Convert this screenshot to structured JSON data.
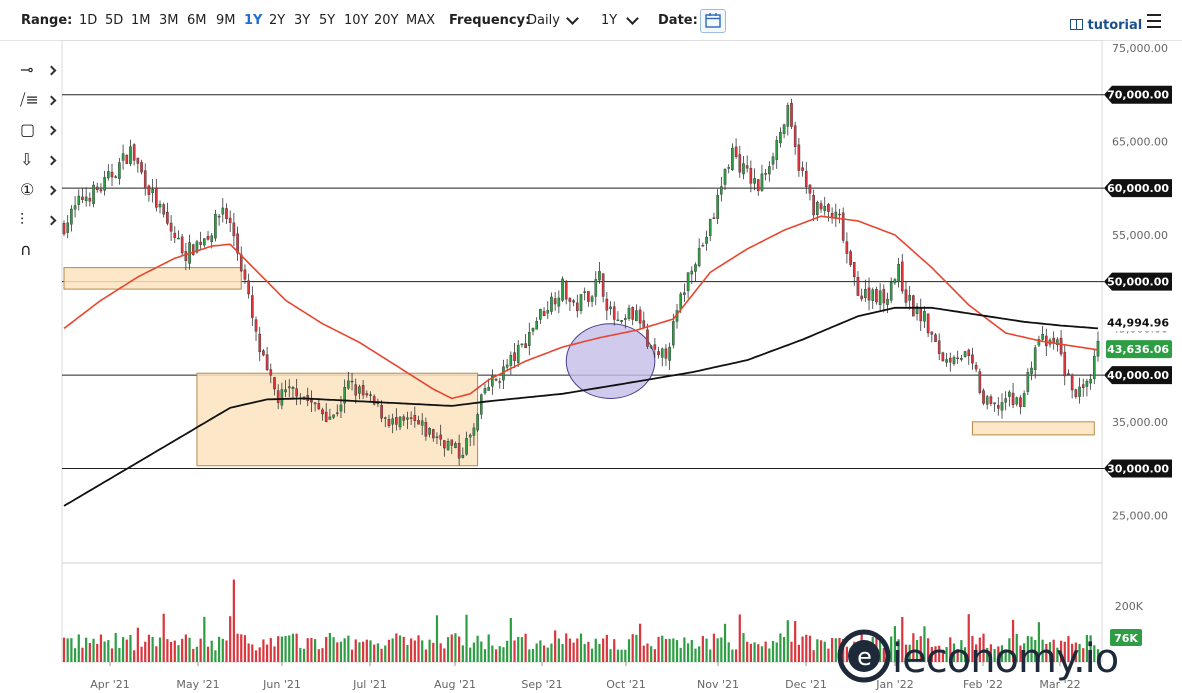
{
  "toolbar": {
    "range_label": "Range:",
    "ranges": [
      "1D",
      "5D",
      "1M",
      "3M",
      "6M",
      "9M",
      "1Y",
      "2Y",
      "3Y",
      "5Y",
      "10Y",
      "20Y",
      "MAX"
    ],
    "active_range": "1Y",
    "frequency_label": "Frequency:",
    "frequency_value": "Daily",
    "period_value": "1Y",
    "date_label": "Date:",
    "calendar_icon": "calendar-icon",
    "tutorial_label": "tutorial",
    "menu_icon": "hamburger-menu-icon"
  },
  "left_tools": [
    "crosshair-line-icon",
    "trend-tools-icon",
    "rectangle-tool-icon",
    "arrow-down-icon",
    "numbered-marker-icon",
    "fibonacci-tool-icon",
    "magnet-icon"
  ],
  "watermark": "ieconomy.io",
  "colors": {
    "up": "#2e9e44",
    "down": "#d9363e",
    "ma50": "#e8452e",
    "ma200": "#111111",
    "zone_fill": "#fbe4c0",
    "zone_stroke": "#b8894a",
    "circle_fill": "#c4bde9"
  },
  "chart_data": {
    "type": "candlestick",
    "y_axis": {
      "min": 20000,
      "max": 75000,
      "ticks": [
        "75,000.00",
        "65,000.00",
        "55,000.00",
        "45,000.00",
        "35,000.00",
        "25,000.00"
      ]
    },
    "x_axis": {
      "ticks": [
        "Apr '21",
        "May '21",
        "Jun '21",
        "Jul '21",
        "Aug '21",
        "Sep '21",
        "Oct '21",
        "Nov '21",
        "Dec '21",
        "Jan '22",
        "Feb '22",
        "Mar '22"
      ]
    },
    "horizontal_lines": [
      {
        "value": 70000,
        "label": "70,000.00"
      },
      {
        "value": 60000,
        "label": "60,000.00"
      },
      {
        "value": 50000,
        "label": "50,000.00"
      },
      {
        "value": 40000,
        "label": "40,000.00"
      },
      {
        "value": 30000,
        "label": "30,000.00"
      }
    ],
    "price_labels": [
      {
        "value": 44994.96,
        "label": "44,994.96",
        "series": "ma200"
      },
      {
        "value": 43636.06,
        "label": "43,636.06",
        "series": "last_price"
      }
    ],
    "volume": {
      "axis_label": "200K",
      "last_label": "76K"
    },
    "close_path": [
      [
        0,
        56000
      ],
      [
        5,
        59000
      ],
      [
        10,
        60000
      ],
      [
        15,
        62500
      ],
      [
        18,
        64000
      ],
      [
        23,
        60000
      ],
      [
        28,
        56000
      ],
      [
        33,
        53000
      ],
      [
        40,
        55500
      ],
      [
        43,
        58000
      ],
      [
        46,
        55000
      ],
      [
        49,
        50000
      ],
      [
        52,
        44000
      ],
      [
        55,
        40000
      ],
      [
        58,
        37500
      ],
      [
        63,
        38500
      ],
      [
        68,
        36500
      ],
      [
        73,
        35500
      ],
      [
        77,
        39000
      ],
      [
        82,
        37500
      ],
      [
        86,
        36000
      ],
      [
        90,
        34500
      ],
      [
        94,
        35000
      ],
      [
        98,
        34000
      ],
      [
        103,
        33000
      ],
      [
        107,
        31500
      ],
      [
        111,
        34000
      ],
      [
        114,
        38500
      ],
      [
        117,
        39500
      ],
      [
        120,
        41000
      ],
      [
        124,
        43000
      ],
      [
        128,
        46000
      ],
      [
        132,
        48000
      ],
      [
        135,
        49500
      ],
      [
        138,
        47000
      ],
      [
        141,
        48500
      ],
      [
        143,
        49000
      ],
      [
        145,
        50500
      ],
      [
        148,
        46500
      ],
      [
        151,
        45000
      ],
      [
        153,
        46500
      ],
      [
        156,
        46000
      ],
      [
        158,
        43000
      ],
      [
        161,
        41500
      ],
      [
        163,
        42500
      ],
      [
        165,
        45000
      ],
      [
        167,
        48000
      ],
      [
        170,
        52000
      ],
      [
        173,
        54000
      ],
      [
        176,
        57000
      ],
      [
        178,
        60500
      ],
      [
        181,
        64000
      ],
      [
        183,
        62500
      ],
      [
        186,
        61000
      ],
      [
        188,
        60000
      ],
      [
        191,
        63000
      ],
      [
        194,
        66000
      ],
      [
        196,
        68000
      ],
      [
        198,
        64000
      ],
      [
        201,
        60000
      ],
      [
        203,
        58000
      ],
      [
        206,
        57500
      ],
      [
        208,
        57000
      ],
      [
        210,
        56500
      ],
      [
        213,
        51000
      ],
      [
        216,
        48500
      ],
      [
        219,
        49000
      ],
      [
        222,
        48000
      ],
      [
        224,
        50000
      ],
      [
        226,
        51000
      ],
      [
        228,
        48500
      ],
      [
        230,
        47000
      ],
      [
        233,
        46000
      ],
      [
        236,
        43000
      ],
      [
        239,
        41500
      ],
      [
        241,
        42500
      ],
      [
        244,
        42000
      ],
      [
        247,
        40000
      ],
      [
        249,
        37000
      ],
      [
        252,
        36500
      ],
      [
        255,
        37500
      ],
      [
        258,
        37000
      ],
      [
        260,
        38000
      ],
      [
        262,
        41500
      ],
      [
        264,
        44000
      ],
      [
        267,
        43000
      ],
      [
        269,
        43500
      ],
      [
        271,
        40500
      ],
      [
        273,
        38500
      ],
      [
        276,
        38000
      ],
      [
        278,
        39000
      ],
      [
        280,
        43636
      ]
    ],
    "ma50_path": [
      [
        0,
        45000
      ],
      [
        10,
        48000
      ],
      [
        20,
        50500
      ],
      [
        30,
        52500
      ],
      [
        40,
        53800
      ],
      [
        45,
        54000
      ],
      [
        50,
        52000
      ],
      [
        60,
        48000
      ],
      [
        70,
        45500
      ],
      [
        80,
        43500
      ],
      [
        90,
        41000
      ],
      [
        100,
        38500
      ],
      [
        105,
        37500
      ],
      [
        110,
        38000
      ],
      [
        115,
        39500
      ],
      [
        125,
        41500
      ],
      [
        135,
        43000
      ],
      [
        145,
        44000
      ],
      [
        155,
        44800
      ],
      [
        165,
        46000
      ],
      [
        175,
        51000
      ],
      [
        185,
        53500
      ],
      [
        195,
        55500
      ],
      [
        205,
        57000
      ],
      [
        215,
        56500
      ],
      [
        225,
        55000
      ],
      [
        235,
        51500
      ],
      [
        245,
        47500
      ],
      [
        255,
        44500
      ],
      [
        265,
        43600
      ],
      [
        275,
        43000
      ],
      [
        280,
        42700
      ]
    ],
    "ma200_path": [
      [
        0,
        26000
      ],
      [
        15,
        29500
      ],
      [
        30,
        33000
      ],
      [
        45,
        36500
      ],
      [
        55,
        37400
      ],
      [
        65,
        37500
      ],
      [
        75,
        37300
      ],
      [
        90,
        37000
      ],
      [
        105,
        36700
      ],
      [
        115,
        37200
      ],
      [
        135,
        38000
      ],
      [
        155,
        39300
      ],
      [
        170,
        40300
      ],
      [
        185,
        41600
      ],
      [
        200,
        43800
      ],
      [
        215,
        46300
      ],
      [
        225,
        47200
      ],
      [
        235,
        47200
      ],
      [
        245,
        46600
      ],
      [
        260,
        45700
      ],
      [
        270,
        45300
      ],
      [
        280,
        45000
      ]
    ],
    "zones": [
      {
        "type": "rectangle",
        "x0": 0,
        "x1": 48,
        "y0": 49200,
        "y1": 51500
      },
      {
        "type": "rectangle",
        "x0": 36,
        "x1": 112,
        "y0": 30300,
        "y1": 40200
      },
      {
        "type": "rectangle",
        "x0": 246,
        "x1": 279,
        "y0": 33600,
        "y1": 35000
      }
    ],
    "circle": {
      "x": 148,
      "y": 41500,
      "rx": 12,
      "ry": 4000
    }
  }
}
